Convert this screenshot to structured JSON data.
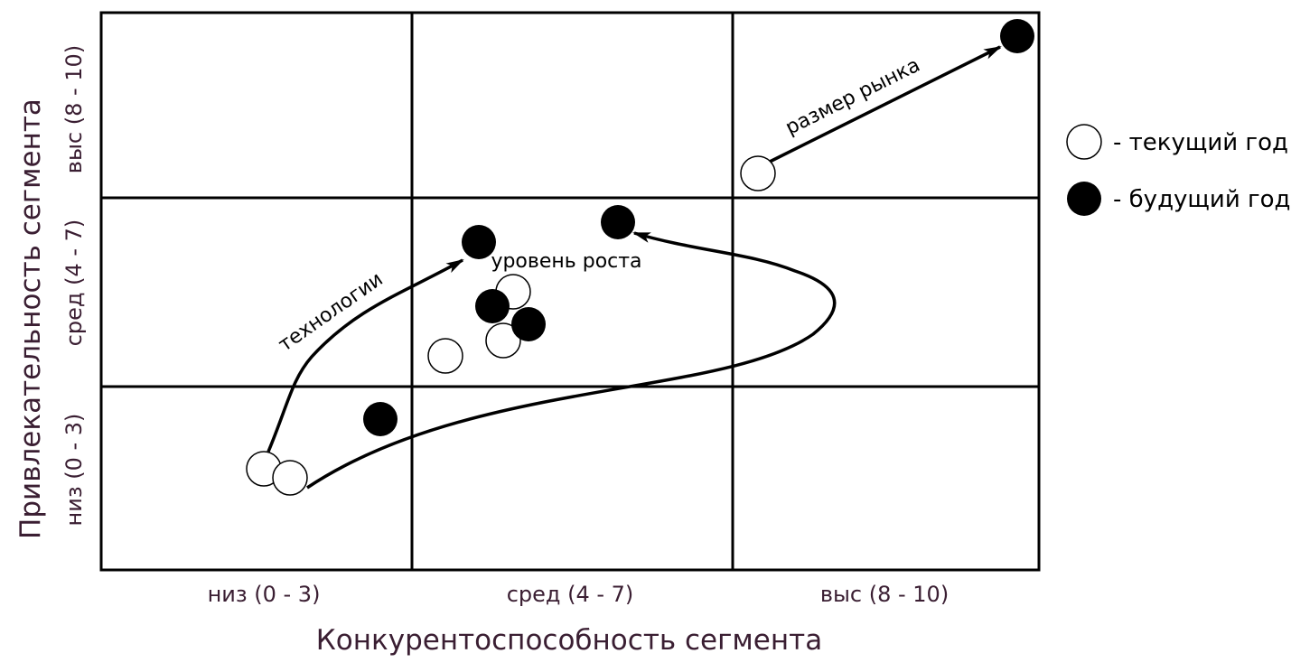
{
  "axes": {
    "x_title": "Конкурентоспособность сегмента",
    "y_title": "Привлекательность сегмента",
    "x_ticks": [
      "низ (0 - 3)",
      "сред (4 - 7)",
      "выс (8 - 10)"
    ],
    "y_ticks": [
      "низ (0 - 3)",
      "сред (4 - 7)",
      "выс (8 - 10)"
    ]
  },
  "arrows": {
    "market": "размер рынка",
    "tech": "технологии",
    "growth": "уровень роста"
  },
  "legend": {
    "current": "- текущий год",
    "future": "- будущий год"
  },
  "colors": {
    "axis_text": "#3a1e32",
    "line": "#000000",
    "current_fill": "#ffffff",
    "future_fill": "#000000"
  }
}
